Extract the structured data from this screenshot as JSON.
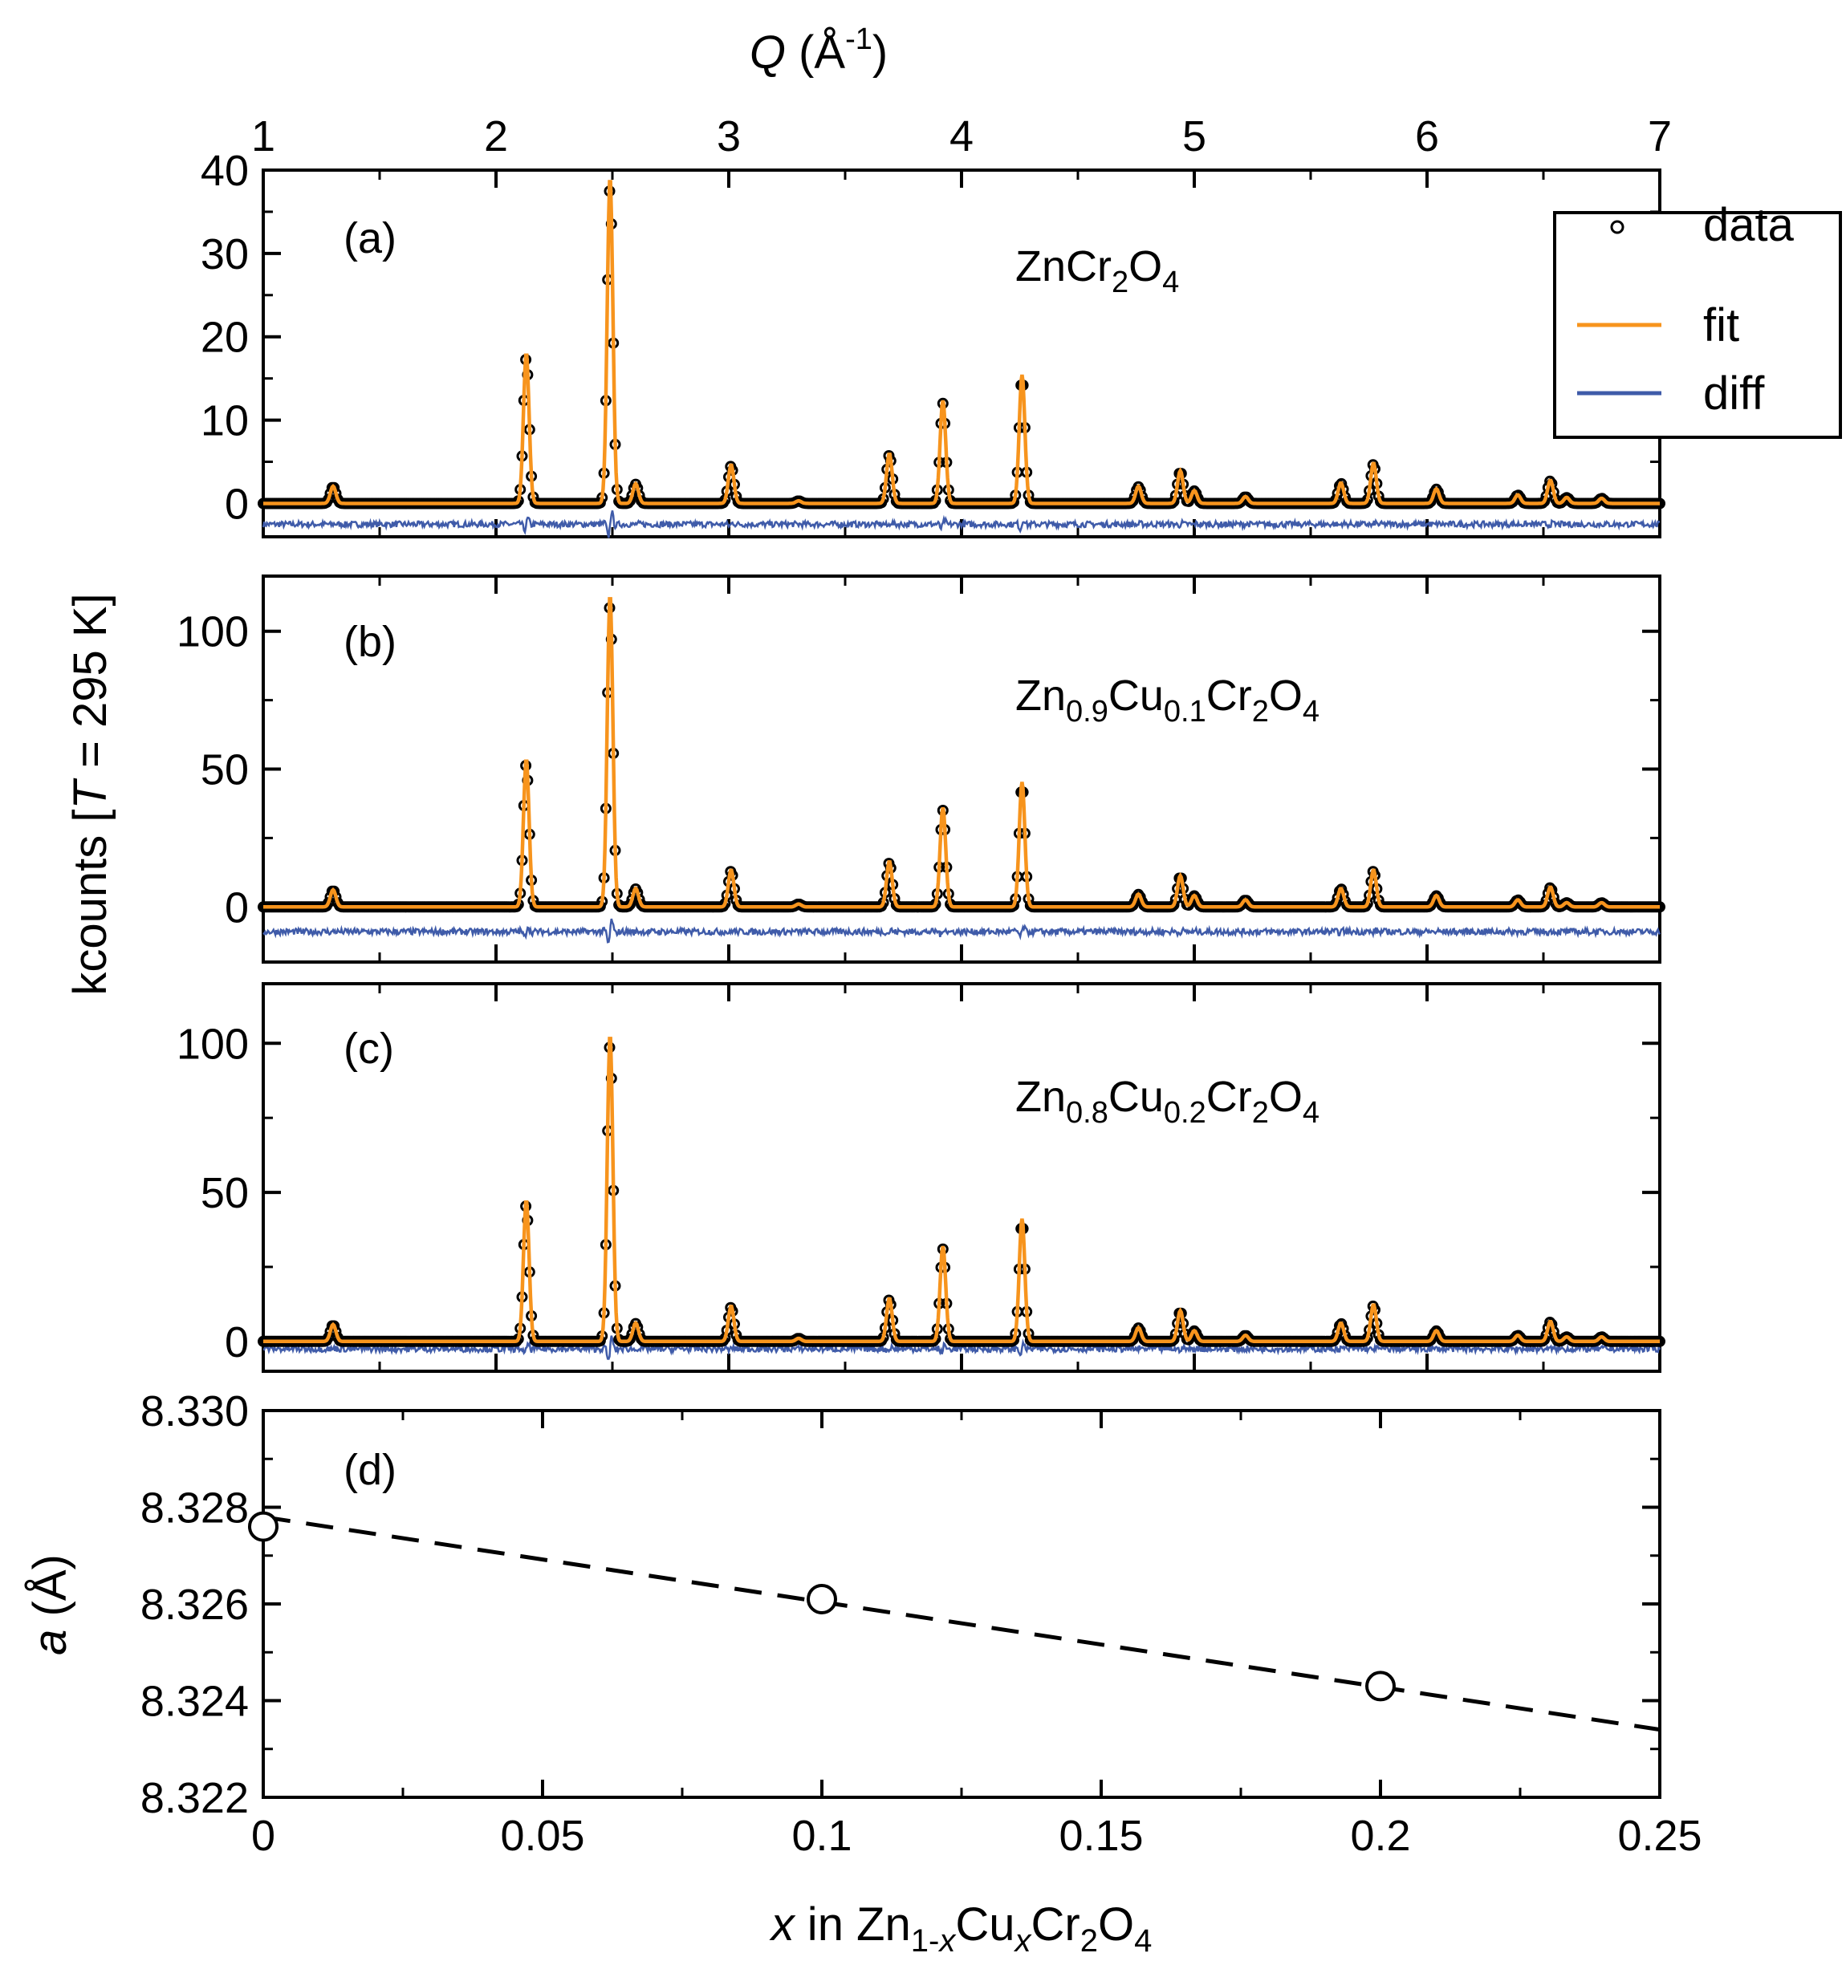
{
  "chart_data": {
    "type": "line",
    "colors": {
      "data": "#000000",
      "fit": "#f7941d",
      "diff": "#3f5ba9"
    },
    "legend": {
      "position": "top-right",
      "entries": [
        {
          "name": "data",
          "style": "open-circle"
        },
        {
          "name": "fit",
          "style": "line"
        },
        {
          "name": "diff",
          "style": "line"
        }
      ]
    },
    "q_axis": {
      "label_prefix": "Q",
      "label_suffix": " (Å",
      "label_exponent": "-1",
      "label_close": ")",
      "range": [
        1,
        7
      ],
      "ticks": [
        "1",
        "2",
        "3",
        "4",
        "5",
        "6",
        "7"
      ]
    },
    "shared_ylabel": {
      "prefix": "kcounts [",
      "italic": "T",
      "suffix": " = 295 K]"
    },
    "diffraction_panels": [
      {
        "id": "a",
        "panel_label": "(a)",
        "compound": {
          "main": "ZnCr",
          "s1": "2",
          "mid": "O",
          "s2": "4",
          "pre": "",
          "ps1": "",
          "pre2": "",
          "ps2": ""
        },
        "ylim": [
          -4,
          40
        ],
        "yticks": [
          0,
          10,
          20,
          30,
          40
        ],
        "diff_offset": -2.5,
        "peaks": [
          {
            "q": 1.3,
            "h": 2
          },
          {
            "q": 2.13,
            "h": 17.5
          },
          {
            "q": 2.49,
            "h": 38
          },
          {
            "q": 2.6,
            "h": 2.3
          },
          {
            "q": 3.01,
            "h": 4.5
          },
          {
            "q": 3.3,
            "h": 0.3
          },
          {
            "q": 3.69,
            "h": 5.8
          },
          {
            "q": 3.92,
            "h": 12
          },
          {
            "q": 4.26,
            "h": 15
          },
          {
            "q": 4.76,
            "h": 2
          },
          {
            "q": 4.94,
            "h": 3.8
          },
          {
            "q": 5.0,
            "h": 1.5
          },
          {
            "q": 5.22,
            "h": 0.8
          },
          {
            "q": 5.63,
            "h": 2.4
          },
          {
            "q": 5.77,
            "h": 4.7
          },
          {
            "q": 6.04,
            "h": 1.7
          },
          {
            "q": 6.39,
            "h": 1
          },
          {
            "q": 6.53,
            "h": 2.7
          },
          {
            "q": 6.6,
            "h": 0.7
          },
          {
            "q": 6.75,
            "h": 0.6
          }
        ]
      },
      {
        "id": "b",
        "panel_label": "(b)",
        "compound": {
          "pre": "Zn",
          "ps1": "0.9",
          "pre2": "Cu",
          "ps2": "0.1",
          "main": "Cr",
          "s1": "2",
          "mid": "O",
          "s2": "4"
        },
        "ylim": [
          -20,
          120
        ],
        "yticks": [
          0,
          50,
          100
        ],
        "diff_offset": -9,
        "peaks": [
          {
            "q": 1.3,
            "h": 6
          },
          {
            "q": 2.13,
            "h": 52
          },
          {
            "q": 2.49,
            "h": 110
          },
          {
            "q": 2.6,
            "h": 6.5
          },
          {
            "q": 3.01,
            "h": 13
          },
          {
            "q": 3.3,
            "h": 1
          },
          {
            "q": 3.69,
            "h": 16
          },
          {
            "q": 3.92,
            "h": 35
          },
          {
            "q": 4.26,
            "h": 44
          },
          {
            "q": 4.76,
            "h": 4.5
          },
          {
            "q": 4.94,
            "h": 11
          },
          {
            "q": 5.0,
            "h": 4
          },
          {
            "q": 5.22,
            "h": 2.5
          },
          {
            "q": 5.63,
            "h": 6.5
          },
          {
            "q": 5.77,
            "h": 13
          },
          {
            "q": 6.04,
            "h": 4
          },
          {
            "q": 6.39,
            "h": 2.5
          },
          {
            "q": 6.53,
            "h": 7
          },
          {
            "q": 6.6,
            "h": 1.5
          },
          {
            "q": 6.75,
            "h": 1.5
          }
        ]
      },
      {
        "id": "c",
        "panel_label": "(c)",
        "compound": {
          "pre": "Zn",
          "ps1": "0.8",
          "pre2": "Cu",
          "ps2": "0.2",
          "main": "Cr",
          "s1": "2",
          "mid": "O",
          "s2": "4"
        },
        "ylim": [
          -10,
          120
        ],
        "yticks": [
          0,
          50,
          100
        ],
        "diff_offset": -2.5,
        "peaks": [
          {
            "q": 1.3,
            "h": 5.5
          },
          {
            "q": 2.13,
            "h": 46
          },
          {
            "q": 2.49,
            "h": 100
          },
          {
            "q": 2.6,
            "h": 6
          },
          {
            "q": 3.01,
            "h": 11.5
          },
          {
            "q": 3.3,
            "h": 1
          },
          {
            "q": 3.69,
            "h": 14
          },
          {
            "q": 3.92,
            "h": 31
          },
          {
            "q": 4.26,
            "h": 40
          },
          {
            "q": 4.76,
            "h": 4.5
          },
          {
            "q": 4.94,
            "h": 10
          },
          {
            "q": 5.0,
            "h": 3.5
          },
          {
            "q": 5.22,
            "h": 2
          },
          {
            "q": 5.63,
            "h": 6
          },
          {
            "q": 5.77,
            "h": 12
          },
          {
            "q": 6.04,
            "h": 3.5
          },
          {
            "q": 6.39,
            "h": 2
          },
          {
            "q": 6.53,
            "h": 6.5
          },
          {
            "q": 6.6,
            "h": 1.5
          },
          {
            "q": 6.75,
            "h": 1.5
          }
        ]
      }
    ],
    "lattice_panel": {
      "panel_label": "(d)",
      "type": "scatter",
      "ylabel_italic": "a",
      "ylabel_rest": " (Å)",
      "xlabel": {
        "italic_x": "x",
        "in": " in Zn",
        "sub1": "1-",
        "sub1i": "x",
        "cu": "Cu",
        "sub2": "x",
        "cr": "Cr",
        "sub3": "2",
        "o": "O",
        "sub4": "4"
      },
      "xlim": [
        0,
        0.25
      ],
      "ylim": [
        8.322,
        8.33
      ],
      "xticks": [
        "0",
        "0.05",
        "0.1",
        "0.15",
        "0.2",
        "0.25"
      ],
      "yticks": [
        "8.322",
        "8.324",
        "8.326",
        "8.328",
        "8.330"
      ],
      "points": [
        {
          "x": 0,
          "y": 8.3276
        },
        {
          "x": 0.1,
          "y": 8.3261
        },
        {
          "x": 0.2,
          "y": 8.3243
        }
      ],
      "fit_line": {
        "style": "dashed",
        "x": [
          0,
          0.25
        ],
        "y": [
          8.3278,
          8.3234
        ]
      }
    }
  }
}
